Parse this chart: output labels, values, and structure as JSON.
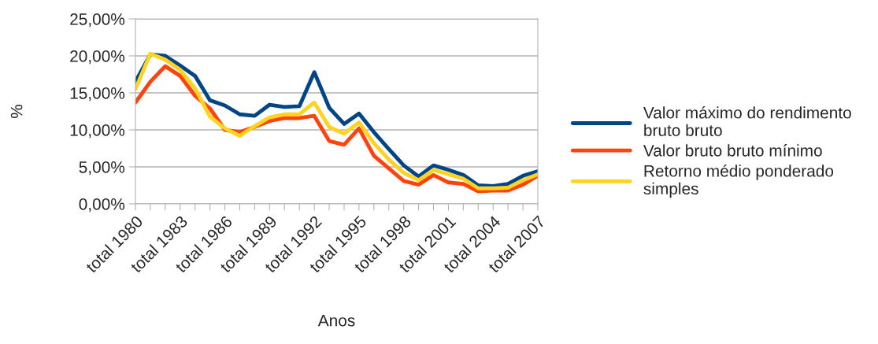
{
  "chart_data": {
    "type": "line",
    "xlabel": "Anos",
    "ylabel": "%",
    "categories": [
      "total 1980",
      null,
      null,
      "total 1983",
      null,
      null,
      "total 1986",
      null,
      null,
      "total 1989",
      null,
      null,
      "total 1992",
      null,
      null,
      "total 1995",
      null,
      null,
      "total 1998",
      null,
      null,
      "total 2001",
      null,
      null,
      "total 2004",
      null,
      null,
      "total 2007"
    ],
    "series": [
      {
        "name": "Valor máximo do rendimento bruto bruto",
        "color": "#004586",
        "values": [
          16.5,
          20.2,
          20.0,
          18.7,
          17.3,
          14.0,
          13.3,
          12.1,
          11.9,
          13.4,
          13.1,
          13.2,
          17.8,
          13.0,
          10.8,
          12.2,
          9.7,
          7.4,
          5.2,
          3.7,
          5.2,
          4.6,
          3.9,
          2.5,
          2.4,
          2.7,
          3.8,
          4.4
        ]
      },
      {
        "name": "Valor bruto bruto mínimo",
        "color": "#ff420e",
        "values": [
          13.7,
          16.5,
          18.6,
          17.3,
          14.6,
          12.9,
          10.0,
          9.7,
          10.4,
          11.2,
          11.6,
          11.6,
          11.9,
          8.5,
          8.0,
          10.2,
          6.5,
          4.8,
          3.1,
          2.6,
          3.9,
          2.9,
          2.7,
          1.7,
          1.8,
          1.8,
          2.6,
          3.8
        ]
      },
      {
        "name": "Retorno médio ponderado simples",
        "color": "#ffd320",
        "values": [
          15.5,
          20.3,
          19.5,
          18.1,
          15.6,
          11.8,
          10.2,
          9.2,
          10.5,
          11.7,
          12.1,
          12.1,
          13.7,
          10.4,
          9.5,
          11.0,
          8.2,
          6.0,
          4.2,
          3.2,
          4.6,
          4.0,
          3.4,
          2.1,
          2.1,
          2.2,
          3.2,
          4.0
        ]
      }
    ],
    "ylim": [
      0,
      25
    ],
    "yticks": [
      {
        "value": 0,
        "label": "0,00%"
      },
      {
        "value": 5,
        "label": "5,00%"
      },
      {
        "value": 10,
        "label": "10,00%"
      },
      {
        "value": 15,
        "label": "15,00%"
      },
      {
        "value": 20,
        "label": "20,00%"
      },
      {
        "value": 25,
        "label": "25,00%"
      }
    ],
    "grid": "y",
    "legend": "right",
    "marker": "none",
    "line_style": "solid"
  }
}
